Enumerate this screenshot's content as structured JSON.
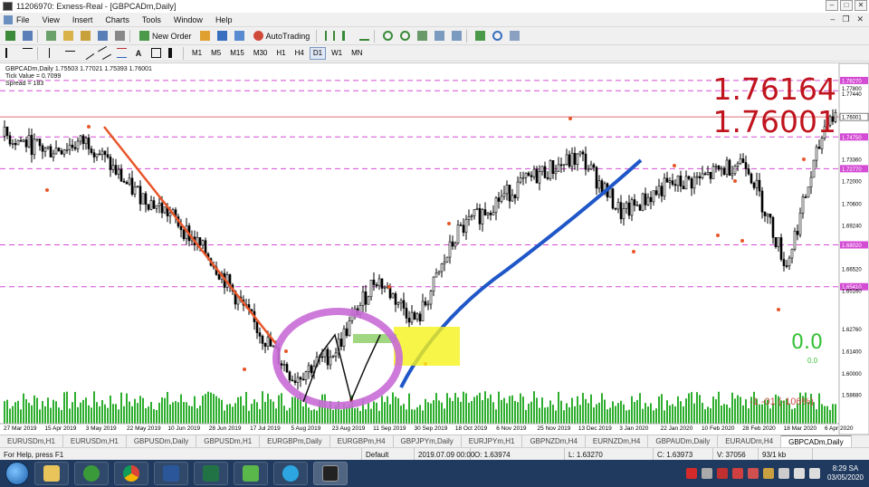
{
  "window": {
    "title": "11206970: Exness-Real - [GBPCADm,Daily]"
  },
  "menu": [
    "File",
    "View",
    "Insert",
    "Charts",
    "Tools",
    "Window",
    "Help"
  ],
  "toolbar": {
    "new_order_label": "New Order",
    "autotrading_label": "AutoTrading",
    "timeframes": [
      "M1",
      "M5",
      "M15",
      "M30",
      "H1",
      "H4",
      "D1",
      "W1",
      "MN"
    ],
    "active_timeframe": "D1"
  },
  "chart": {
    "symbol_line": "GBPCADm,Daily  1.75503 1.77021 1.75393 1.76001",
    "tick_value": "Tick Value = 0.7099",
    "spread": "Spread = 183",
    "big_price_1": "1.76164",
    "big_price_2": "1.76001",
    "pnl_big": "0.0",
    "pnl_small": "0.0",
    "pnl_negative": "-1 -01 (-106%)",
    "current_price_label": "1.76001",
    "colors": {
      "candles": "#000000",
      "level_lines": "#d44bd4",
      "current_price_line": "#c0141e",
      "downtrend_line": "#e8562a",
      "uptrend_line": "#1f56c8",
      "circle_highlight": "#c96bd6",
      "box_highlight": "#f5f21a",
      "volume_bars": "#2eae2e"
    }
  },
  "chart_data": {
    "type": "candlestick",
    "title": "GBPCADm,Daily",
    "x": [
      "27 Mar 2019",
      "15 Apr 2019",
      "3 May 2019",
      "22 May 2019",
      "10 Jun 2019",
      "28 Jun 2019",
      "17 Jul 2019",
      "5 Aug 2019",
      "23 Aug 2019",
      "11 Sep 2019",
      "30 Sep 2019",
      "18 Oct 2019",
      "6 Nov 2019",
      "25 Nov 2019",
      "13 Dec 2019",
      "3 Jan 2020",
      "22 Jan 2020",
      "10 Feb 2020",
      "28 Feb 2020",
      "18 Mar 2020",
      "6 Apr 2020"
    ],
    "close": [
      1.748,
      1.739,
      1.745,
      1.716,
      1.699,
      1.671,
      1.632,
      1.597,
      1.614,
      1.66,
      1.632,
      1.688,
      1.709,
      1.725,
      1.735,
      1.699,
      1.716,
      1.722,
      1.734,
      1.667,
      1.76
    ],
    "y_ticks": [
      "1.78270",
      "1.77800",
      "1.77440",
      "1.76001",
      "1.74750",
      "1.73360",
      "1.72770",
      "1.72000",
      "1.70600",
      "1.69240",
      "1.68020",
      "1.66520",
      "1.65410",
      "1.65160",
      "1.62760",
      "1.61400",
      "1.60000",
      "1.58680"
    ],
    "horizontal_levels": [
      1.7827,
      1.7763,
      1.7475,
      1.7277,
      1.6802,
      1.6541
    ],
    "current_price": 1.76001,
    "ylim": [
      1.58,
      1.79
    ]
  },
  "tabs": [
    "EURUSDm,H1",
    "EURUSDm,H1",
    "GBPUSDm,Daily",
    "GBPUSDm,H1",
    "EURGBPm,Daily",
    "EURGBPm,H4",
    "GBPJPYm,Daily",
    "EURJPYm,H1",
    "GBPNZDm,H4",
    "EURNZDm,H4",
    "GBPAUDm,Daily",
    "EURAUDm,H4",
    "GBPCADm,Daily"
  ],
  "active_tab": "GBPCADm,Daily",
  "status": {
    "help": "For Help, press F1",
    "profile": "Default",
    "datetime": "2019.07.09 00:00",
    "open": "O: 1.63974",
    "low": "L: 1.63270",
    "close": "C: 1.63973",
    "volume": "V: 37056",
    "traffic": "93/1 kb"
  },
  "taskbar": {
    "time": "8:29 SA",
    "date": "03/05/2020"
  }
}
